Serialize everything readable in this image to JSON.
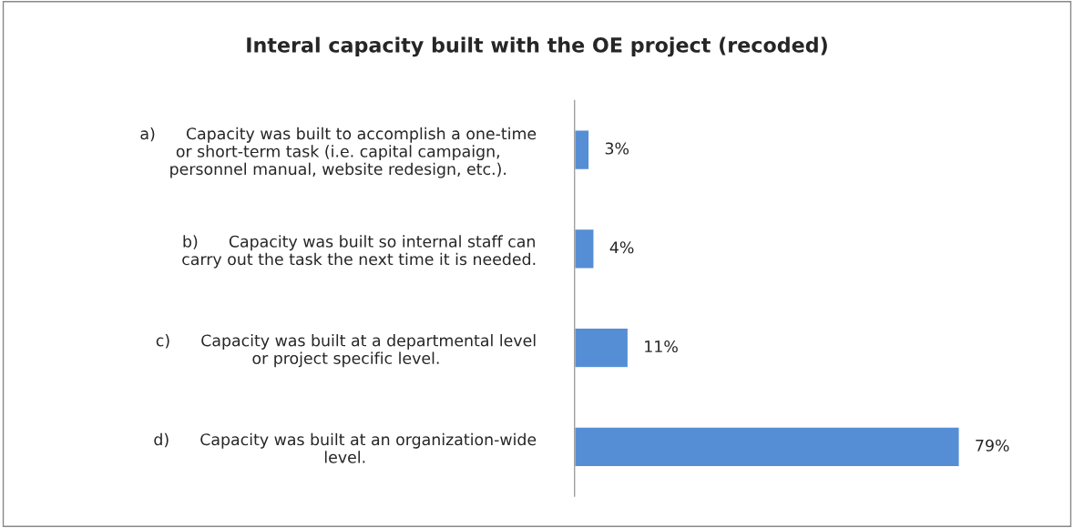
{
  "chart_data": {
    "type": "bar",
    "orientation": "horizontal",
    "title": "Interal capacity built with the OE project (recoded)",
    "categories": [
      "a)      Capacity was built to accomplish a one-time\nor short-term task (i.e. capital campaign,\npersonnel manual, website redesign, etc.).",
      "b)      Capacity was built so internal staff can\ncarry out the task the next time it is needed.",
      "c)      Capacity was built at a departmental level\nor project specific level.",
      "d)      Capacity was built at an organization-wide\nlevel."
    ],
    "values": [
      3,
      4,
      11,
      79
    ],
    "value_labels": [
      "3%",
      "4%",
      "11%",
      "79%"
    ],
    "color": "#558ed5",
    "grid": false,
    "legend": false
  }
}
